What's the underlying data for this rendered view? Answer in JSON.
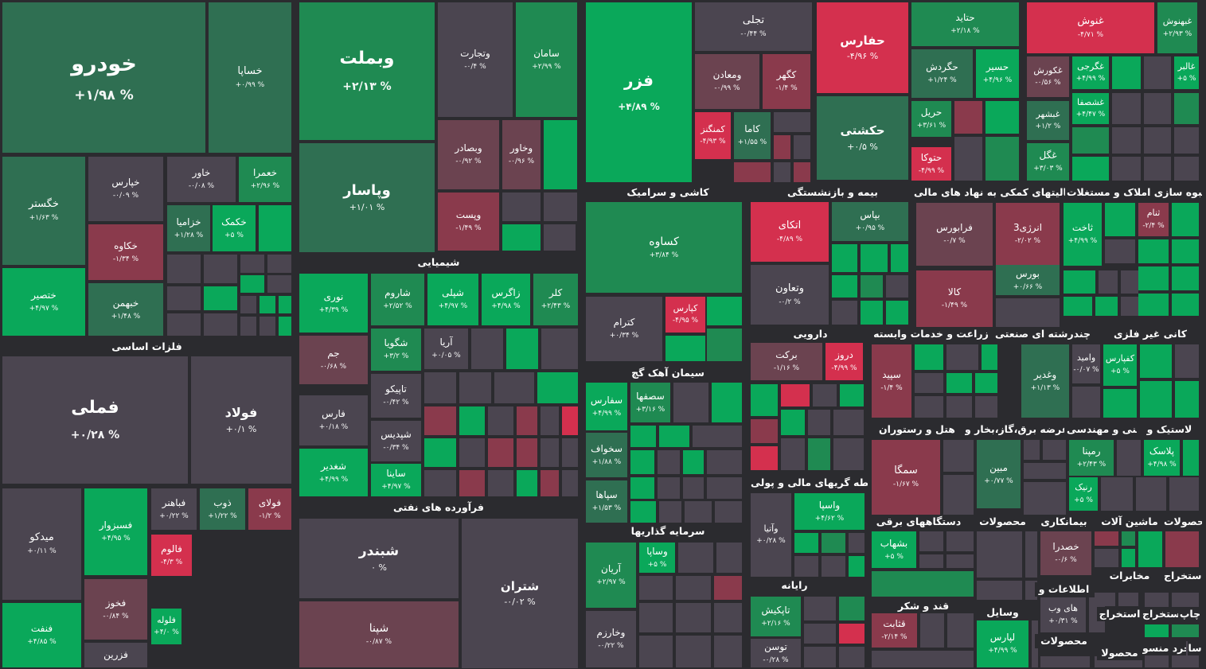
{
  "colors": {
    "background": "#2b2b2f",
    "neutral": "#4b4550",
    "gain_strong": "#0aa85a",
    "gain_mid": "#1f8a52",
    "gain_light": "#2f6f52",
    "loss_strong": "#d4304e",
    "loss_mid": "#8a3a4c",
    "loss_light": "#6b4350"
  },
  "chart_data": {
    "type": "heatmap",
    "title": "",
    "sectors": [
      "فلزات اساسی",
      "شیمیایی",
      "فرآورده های نفتی",
      "کاشی و سرامیک",
      "بیمه و بازنشستگی",
      "فعالیتهای کمکی به نهاد های مالی",
      "انبوه سازی املاک و مستغلات",
      "سیمان آهک گچ",
      "دارویی",
      "زراعت و خدمات وابسته",
      "چندرشته ای صنعتی",
      "کانی غیر فلزی",
      "سرمایه گذاریها",
      "واسطه گریهای مالی و پولی",
      "هتل و رستوران",
      "عرضه برق،گاز،بخار و",
      "فنی و مهندسی",
      "لاستیک و",
      "رایانه",
      "دستگاههای برقی",
      "محصولات",
      "بیمانکاری",
      "ماشین آلات",
      "محصولات",
      "قند و شکر",
      "وسایل",
      "اطلاعات و",
      "مخابرات",
      "استخراج",
      "محصولات",
      "استخراج",
      "استخراج",
      "چاپ",
      "محصولا",
      "خرد منسو",
      "سا"
    ],
    "tiles": [
      {
        "symbol": "خودرو",
        "change": "+۱/۹۸ %",
        "change_pct": 1.98
      },
      {
        "symbol": "خساپا",
        "change": "+۰/۹۹ %",
        "change_pct": 0.99
      },
      {
        "symbol": "خگستر",
        "change": "+۱/۶۳ %",
        "change_pct": 1.63
      },
      {
        "symbol": "خپارس",
        "change": "-۰/۰۹ %",
        "change_pct": -0.09
      },
      {
        "symbol": "خاور",
        "change": "-۰/۰۸ %",
        "change_pct": -0.08
      },
      {
        "symbol": "خعمرا",
        "change": "+۲/۹۶ %",
        "change_pct": 2.96
      },
      {
        "symbol": "خکاوه",
        "change": "-۱/۳۴ %",
        "change_pct": -1.34
      },
      {
        "symbol": "خزامیا",
        "change": "+۱/۲۸ %",
        "change_pct": 1.28
      },
      {
        "symbol": "خکمک",
        "change": "+۵ %",
        "change_pct": 5
      },
      {
        "symbol": "ختصیر",
        "change": "+۴/۹۷ %",
        "change_pct": 4.97
      },
      {
        "symbol": "خبهمن",
        "change": "+۱/۴۸ %",
        "change_pct": 1.48
      },
      {
        "symbol": "وبملت",
        "change": "+۲/۱۳ %",
        "change_pct": 2.13
      },
      {
        "symbol": "وتجارت",
        "change": "-۰/۴ %",
        "change_pct": -0.4
      },
      {
        "symbol": "سامان",
        "change": "+۲/۹۹ %",
        "change_pct": 2.99
      },
      {
        "symbol": "وبصادر",
        "change": "-۰/۹۲ %",
        "change_pct": -0.92
      },
      {
        "symbol": "وخاور",
        "change": "-۰/۹۶ %",
        "change_pct": -0.96
      },
      {
        "symbol": "وپاسار",
        "change": "+۱/۰۱ %",
        "change_pct": 1.01
      },
      {
        "symbol": "وپست",
        "change": "-۱/۴۹ %",
        "change_pct": -1.49
      },
      {
        "symbol": "فزر",
        "change": "+۴/۸۹ %",
        "change_pct": 4.89
      },
      {
        "symbol": "تجلی",
        "change": "-۰/۴۴ %",
        "change_pct": -0.44
      },
      {
        "symbol": "ومعادن",
        "change": "-۰/۹۹ %",
        "change_pct": -0.99
      },
      {
        "symbol": "کگهر",
        "change": "-۱/۴ %",
        "change_pct": -1.4
      },
      {
        "symbol": "کاما",
        "change": "+۱/۵۵ %",
        "change_pct": 1.55
      },
      {
        "symbol": "کمنگنز",
        "change": "-۴/۹۳ %",
        "change_pct": -4.93
      },
      {
        "symbol": "حفارس",
        "change": "-۴/۹۶ %",
        "change_pct": -4.96
      },
      {
        "symbol": "حکشتی",
        "change": "+۰/۵ %",
        "change_pct": 0.5
      },
      {
        "symbol": "حتاید",
        "change": "+۲/۱۸ %",
        "change_pct": 2.18
      },
      {
        "symbol": "حگردش",
        "change": "+۱/۲۴ %",
        "change_pct": 1.24
      },
      {
        "symbol": "حسیر",
        "change": "+۴/۹۶ %",
        "change_pct": 4.96
      },
      {
        "symbol": "حریل",
        "change": "+۳/۶۱ %",
        "change_pct": 3.61
      },
      {
        "symbol": "حتوکا",
        "change": "-۴/۹۹ %",
        "change_pct": -4.99
      },
      {
        "symbol": "غنوش",
        "change": "-۴/۷۱ %",
        "change_pct": -4.71
      },
      {
        "symbol": "غبهنوش",
        "change": "+۲/۹۳ %",
        "change_pct": 2.93
      },
      {
        "symbol": "غکورش",
        "change": "-۰/۵۶ %",
        "change_pct": -0.56
      },
      {
        "symbol": "غگرجی",
        "change": "+۴/۹۹ %",
        "change_pct": 4.99
      },
      {
        "symbol": "غالبر",
        "change": "+۵ %",
        "change_pct": 5
      },
      {
        "symbol": "غشصفا",
        "change": "+۴/۴۷ %",
        "change_pct": 4.47
      },
      {
        "symbol": "غبشهر",
        "change": "+۱/۲ %",
        "change_pct": 1.2
      },
      {
        "symbol": "غگل",
        "change": "+۳/۰۳ %",
        "change_pct": 3.03
      },
      {
        "symbol": "فملی",
        "change": "+۰/۲۸ %",
        "change_pct": 0.28
      },
      {
        "symbol": "فولاد",
        "change": "+۰/۱ %",
        "change_pct": 0.1
      },
      {
        "symbol": "میدکو",
        "change": "+۰/۱۱ %",
        "change_pct": 0.11
      },
      {
        "symbol": "فسبزوار",
        "change": "+۴/۹۵ %",
        "change_pct": 4.95
      },
      {
        "symbol": "فباهنر",
        "change": "+۰/۲۲ %",
        "change_pct": 0.22
      },
      {
        "symbol": "ذوب",
        "change": "+۱/۲۲ %",
        "change_pct": 1.22
      },
      {
        "symbol": "فولای",
        "change": "-۱/۲ %",
        "change_pct": -1.2
      },
      {
        "symbol": "فالوم",
        "change": "-۴/۳ %",
        "change_pct": -4.3
      },
      {
        "symbol": "فخوز",
        "change": "-۰/۸۴ %",
        "change_pct": -0.84
      },
      {
        "symbol": "فنفت",
        "change": "+۴/۸۵ %",
        "change_pct": 4.85
      },
      {
        "symbol": "فلوله",
        "change": "+۴/۰ %",
        "change_pct": 4.0
      },
      {
        "symbol": "فزرین",
        "change": "",
        "change_pct": null
      },
      {
        "symbol": "نوری",
        "change": "+۴/۳۹ %",
        "change_pct": 4.39
      },
      {
        "symbol": "شاروم",
        "change": "+۲/۵۲ %",
        "change_pct": 2.52
      },
      {
        "symbol": "شپلی",
        "change": "+۴/۹۷ %",
        "change_pct": 4.97
      },
      {
        "symbol": "زاگرس",
        "change": "+۴/۹۸ %",
        "change_pct": 4.98
      },
      {
        "symbol": "کلر",
        "change": "+۲/۴۳ %",
        "change_pct": 2.43
      },
      {
        "symbol": "جم",
        "change": "-۰/۶۸ %",
        "change_pct": -0.68
      },
      {
        "symbol": "شگویا",
        "change": "+۳/۲ %",
        "change_pct": 3.2
      },
      {
        "symbol": "آریا",
        "change": "+۰/۰۵ %",
        "change_pct": 0.05
      },
      {
        "symbol": "فارس",
        "change": "+۰/۱۸ %",
        "change_pct": 0.18
      },
      {
        "symbol": "شغدیر",
        "change": "+۴/۹۹ %",
        "change_pct": 4.99
      },
      {
        "symbol": "تاپیکو",
        "change": "-۰/۴۲ %",
        "change_pct": -0.42
      },
      {
        "symbol": "شپدیس",
        "change": "-۰/۳۴ %",
        "change_pct": -0.34
      },
      {
        "symbol": "ساینا",
        "change": "+۴/۹۷ %",
        "change_pct": 4.97
      },
      {
        "symbol": "شبندر",
        "change": "۰ %",
        "change_pct": 0
      },
      {
        "symbol": "شتران",
        "change": "-۰/۰۲ %",
        "change_pct": -0.02
      },
      {
        "symbol": "شپنا",
        "change": "-۰/۸۷ %",
        "change_pct": -0.87
      },
      {
        "symbol": "کساوه",
        "change": "+۳/۸۴ %",
        "change_pct": 3.84
      },
      {
        "symbol": "کترام",
        "change": "+۰/۳۴ %",
        "change_pct": 0.34
      },
      {
        "symbol": "کپارس",
        "change": "-۴/۹۵ %",
        "change_pct": -4.95
      },
      {
        "symbol": "سفارس",
        "change": "+۴/۹۹ %",
        "change_pct": 4.99
      },
      {
        "symbol": "سصفها",
        "change": "+۳/۱۶ %",
        "change_pct": 3.16
      },
      {
        "symbol": "سخواف",
        "change": "+۱/۸۸ %",
        "change_pct": 1.88
      },
      {
        "symbol": "سپاها",
        "change": "+۱/۵۳ %",
        "change_pct": 1.53
      },
      {
        "symbol": "آریان",
        "change": "+۲/۹۷ %",
        "change_pct": 2.97
      },
      {
        "symbol": "وساپا",
        "change": "+۵ %",
        "change_pct": 5
      },
      {
        "symbol": "وخارزم",
        "change": "-۰/۲۲ %",
        "change_pct": -0.22
      },
      {
        "symbol": "اتکای",
        "change": "-۴/۸۹ %",
        "change_pct": -4.89
      },
      {
        "symbol": "وتعاون",
        "change": "-۰/۲ %",
        "change_pct": -0.2
      },
      {
        "symbol": "بپاس",
        "change": "+۰/۹۵ %",
        "change_pct": 0.95
      },
      {
        "symbol": "برکت",
        "change": "-۱/۱۶ %",
        "change_pct": -1.16
      },
      {
        "symbol": "دروز",
        "change": "-۴/۹۹ %",
        "change_pct": -4.99
      },
      {
        "symbol": "وآتیا",
        "change": "+۰/۲۸ %",
        "change_pct": 0.28
      },
      {
        "symbol": "واسپا",
        "change": "+۴/۶۲ %",
        "change_pct": 4.62
      },
      {
        "symbol": "تاپکیش",
        "change": "+۲/۱۶ %",
        "change_pct": 2.16
      },
      {
        "symbol": "توسن",
        "change": "-۰/۲۸ %",
        "change_pct": -0.28
      },
      {
        "symbol": "فرابورس",
        "change": "-۰/۷ %",
        "change_pct": -0.7
      },
      {
        "symbol": "انرژی3",
        "change": "-۲/۰۲ %",
        "change_pct": -2.02
      },
      {
        "symbol": "ثاخت",
        "change": "+۴/۹۹ %",
        "change_pct": 4.99
      },
      {
        "symbol": "ثنام",
        "change": "-۲/۴ %",
        "change_pct": -2.4
      },
      {
        "symbol": "کالا",
        "change": "-۱/۴۹ %",
        "change_pct": -1.49
      },
      {
        "symbol": "بورس",
        "change": "+۰/۶۶ %",
        "change_pct": 0.66
      },
      {
        "symbol": "سپید",
        "change": "-۱/۴ %",
        "change_pct": -1.4
      },
      {
        "symbol": "وغدیر",
        "change": "+۱/۱۳ %",
        "change_pct": 1.13
      },
      {
        "symbol": "وامید",
        "change": "-۰/۰۷ %",
        "change_pct": -0.07
      },
      {
        "symbol": "کفپارس",
        "change": "+۵ %",
        "change_pct": 5
      },
      {
        "symbol": "سمگا",
        "change": "-۱/۶۷ %",
        "change_pct": -1.67
      },
      {
        "symbol": "مبین",
        "change": "+۰/۷۷ %",
        "change_pct": 0.77
      },
      {
        "symbol": "رمپنا",
        "change": "+۲/۴۳ %",
        "change_pct": 2.43
      },
      {
        "symbol": "پلاسک",
        "change": "+۴/۹۸ %",
        "change_pct": 4.98
      },
      {
        "symbol": "رنیک",
        "change": "+۵ %",
        "change_pct": 5
      },
      {
        "symbol": "بشهاب",
        "change": "+۵ %",
        "change_pct": 5
      },
      {
        "symbol": "قثابت",
        "change": "-۲/۱۴ %",
        "change_pct": -2.14
      },
      {
        "symbol": "لپارس",
        "change": "+۴/۹۹ %",
        "change_pct": 4.99
      },
      {
        "symbol": "خصدرا",
        "change": "-۰/۶ %",
        "change_pct": -0.6
      },
      {
        "symbol": "های وب",
        "change": "+۰/۳۱ %",
        "change_pct": 0.31
      }
    ]
  }
}
